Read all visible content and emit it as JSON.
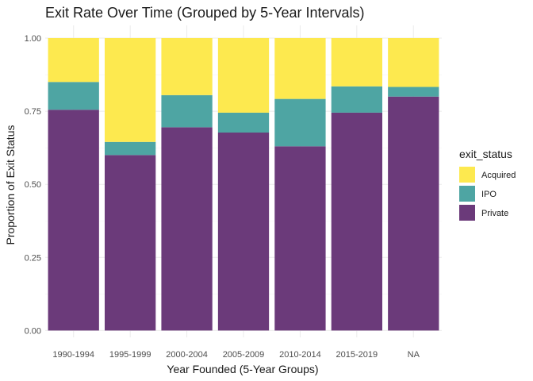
{
  "chart_data": {
    "type": "bar",
    "stacked": true,
    "title": "Exit Rate Over Time (Grouped by 5-Year Intervals)",
    "xlabel": "Year Founded (5-Year Groups)",
    "ylabel": "Proportion of Exit Status",
    "ylim": [
      0,
      1
    ],
    "yticks": [
      "0.00",
      "0.25",
      "0.50",
      "0.75",
      "1.00"
    ],
    "categories": [
      "1990-1994",
      "1995-1999",
      "2000-2004",
      "2005-2009",
      "2010-2014",
      "2015-2019",
      "NA"
    ],
    "series": [
      {
        "name": "Private",
        "color": "#6b3a7a",
        "values": [
          0.755,
          0.6,
          0.695,
          0.677,
          0.63,
          0.745,
          0.8
        ]
      },
      {
        "name": "IPO",
        "color": "#4ea5a3",
        "values": [
          0.095,
          0.045,
          0.11,
          0.068,
          0.162,
          0.09,
          0.033
        ]
      },
      {
        "name": "Acquired",
        "color": "#fde94f",
        "values": [
          0.15,
          0.355,
          0.195,
          0.255,
          0.208,
          0.165,
          0.167
        ]
      }
    ],
    "legend": {
      "title": "exit_status",
      "position": "right",
      "order": [
        "Acquired",
        "IPO",
        "Private"
      ]
    },
    "grid": true
  }
}
